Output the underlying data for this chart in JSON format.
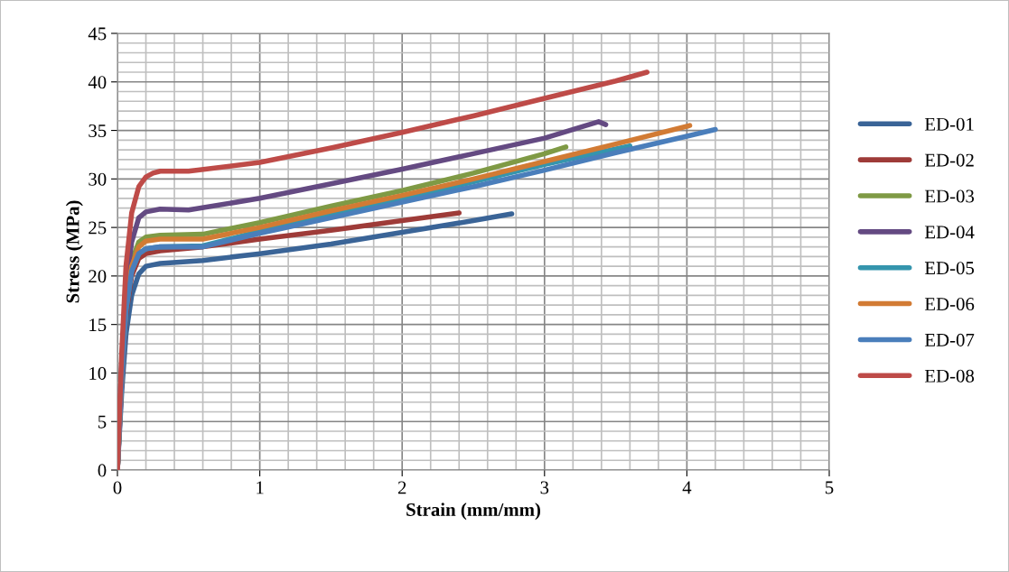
{
  "chart_data": {
    "type": "line",
    "xlabel": "Strain (mm/mm)",
    "ylabel": "Stress (MPa)",
    "xlim": [
      0,
      5
    ],
    "ylim": [
      0,
      45
    ],
    "xticks": [
      0,
      1,
      2,
      3,
      4,
      5
    ],
    "yticks": [
      0,
      5,
      10,
      15,
      20,
      25,
      30,
      35,
      40,
      45
    ],
    "grid": true,
    "legend": "right",
    "marker": "none",
    "line_style": "solid",
    "series": [
      {
        "name": "ED-01",
        "color": "#3a6497",
        "x": [
          0,
          0.03,
          0.06,
          0.1,
          0.15,
          0.2,
          0.3,
          0.6,
          1,
          1.5,
          2,
          2.5,
          2.77
        ],
        "values": [
          0,
          8,
          14,
          18,
          20.2,
          21,
          21.3,
          21.6,
          22.3,
          23.3,
          24.5,
          25.7,
          26.4
        ]
      },
      {
        "name": "ED-02",
        "color": "#9e3b38",
        "x": [
          0,
          0.03,
          0.06,
          0.1,
          0.15,
          0.2,
          0.3,
          0.6,
          1,
          1.5,
          2,
          2.4
        ],
        "values": [
          0,
          9,
          16,
          20,
          21.8,
          22.3,
          22.6,
          23,
          23.8,
          24.7,
          25.7,
          26.5
        ]
      },
      {
        "name": "ED-03",
        "color": "#7f9a45",
        "x": [
          0,
          0.03,
          0.06,
          0.1,
          0.15,
          0.2,
          0.3,
          0.6,
          1,
          1.5,
          2,
          2.5,
          3,
          3.15
        ],
        "values": [
          0,
          10,
          17,
          21.5,
          23.5,
          24,
          24.2,
          24.3,
          25.5,
          27.2,
          28.8,
          30.6,
          32.6,
          33.3
        ]
      },
      {
        "name": "ED-04",
        "color": "#644a82",
        "x": [
          0,
          0.03,
          0.06,
          0.1,
          0.15,
          0.2,
          0.3,
          0.5,
          1,
          1.5,
          2,
          2.5,
          3,
          3.38,
          3.43
        ],
        "values": [
          0,
          11,
          19,
          23.5,
          26,
          26.6,
          26.9,
          26.8,
          28,
          29.5,
          31,
          32.6,
          34.2,
          35.9,
          35.6
        ]
      },
      {
        "name": "ED-05",
        "color": "#3595ad",
        "x": [
          0,
          0.03,
          0.06,
          0.1,
          0.15,
          0.2,
          0.3,
          0.6,
          1,
          2,
          3,
          3.6
        ],
        "values": [
          0,
          9.5,
          16.5,
          20.5,
          22.3,
          22.8,
          23,
          23.1,
          24.6,
          27.9,
          31.5,
          33.4
        ]
      },
      {
        "name": "ED-06",
        "color": "#d27b34",
        "x": [
          0,
          0.03,
          0.06,
          0.1,
          0.15,
          0.2,
          0.3,
          0.6,
          1,
          1.5,
          2,
          2.5,
          3,
          3.5,
          4.02
        ],
        "values": [
          0,
          10,
          17,
          21,
          23,
          23.6,
          23.8,
          23.8,
          25,
          26.7,
          28.3,
          30,
          31.8,
          33.6,
          35.5
        ]
      },
      {
        "name": "ED-07",
        "color": "#4a7ebb",
        "x": [
          0,
          0.03,
          0.06,
          0.1,
          0.15,
          0.2,
          0.3,
          0.6,
          1,
          1.5,
          2,
          2.5,
          3,
          3.5,
          4,
          4.2
        ],
        "values": [
          0,
          9.5,
          16.5,
          20.5,
          22.3,
          22.8,
          23,
          23,
          24.4,
          26,
          27.6,
          29.2,
          30.9,
          32.7,
          34.4,
          35.1
        ]
      },
      {
        "name": "ED-08",
        "color": "#be4b48",
        "x": [
          0,
          0.03,
          0.06,
          0.1,
          0.15,
          0.2,
          0.25,
          0.3,
          0.5,
          1,
          1.5,
          2,
          2.5,
          3,
          3.5,
          3.72
        ],
        "values": [
          0,
          12,
          21,
          26.5,
          29.2,
          30.2,
          30.6,
          30.8,
          30.8,
          31.7,
          33.2,
          34.8,
          36.5,
          38.3,
          40.1,
          41
        ]
      }
    ]
  }
}
